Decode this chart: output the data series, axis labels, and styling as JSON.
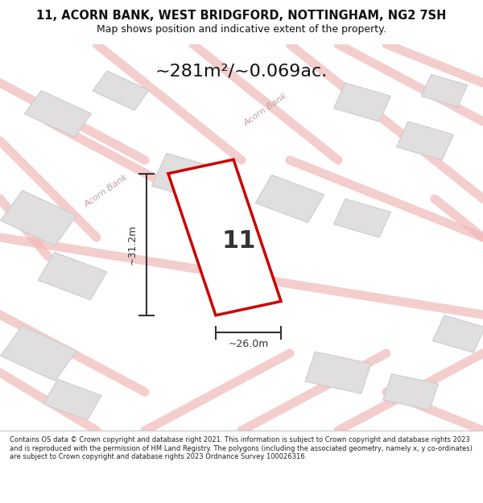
{
  "title_line1": "11, ACORN BANK, WEST BRIDGFORD, NOTTINGHAM, NG2 7SH",
  "title_line2": "Map shows position and indicative extent of the property.",
  "area_text": "~281m²/~0.069ac.",
  "property_number": "11",
  "dim_width": "~26.0m",
  "dim_height": "~31.2m",
  "footer_text": "Contains OS data © Crown copyright and database right 2021. This information is subject to Crown copyright and database rights 2023 and is reproduced with the permission of HM Land Registry. The polygons (including the associated geometry, namely x, y co-ordinates) are subject to Crown copyright and database rights 2023 Ordnance Survey 100026316.",
  "background_color": "#f5f5f5",
  "map_bg_color": "#f0eeee",
  "road_color": "#f0b8b8",
  "building_color": "#e0dede",
  "building_edge_color": "#cccccc",
  "property_color": "#ffffff",
  "property_edge_color": "#cc0000",
  "dim_color": "#333333",
  "title_color": "#111111",
  "road_label_color": "#c0a0a0",
  "acorn_bank_label1": "Acorn Bank",
  "acorn_bank_label2": "Acorn Bank"
}
